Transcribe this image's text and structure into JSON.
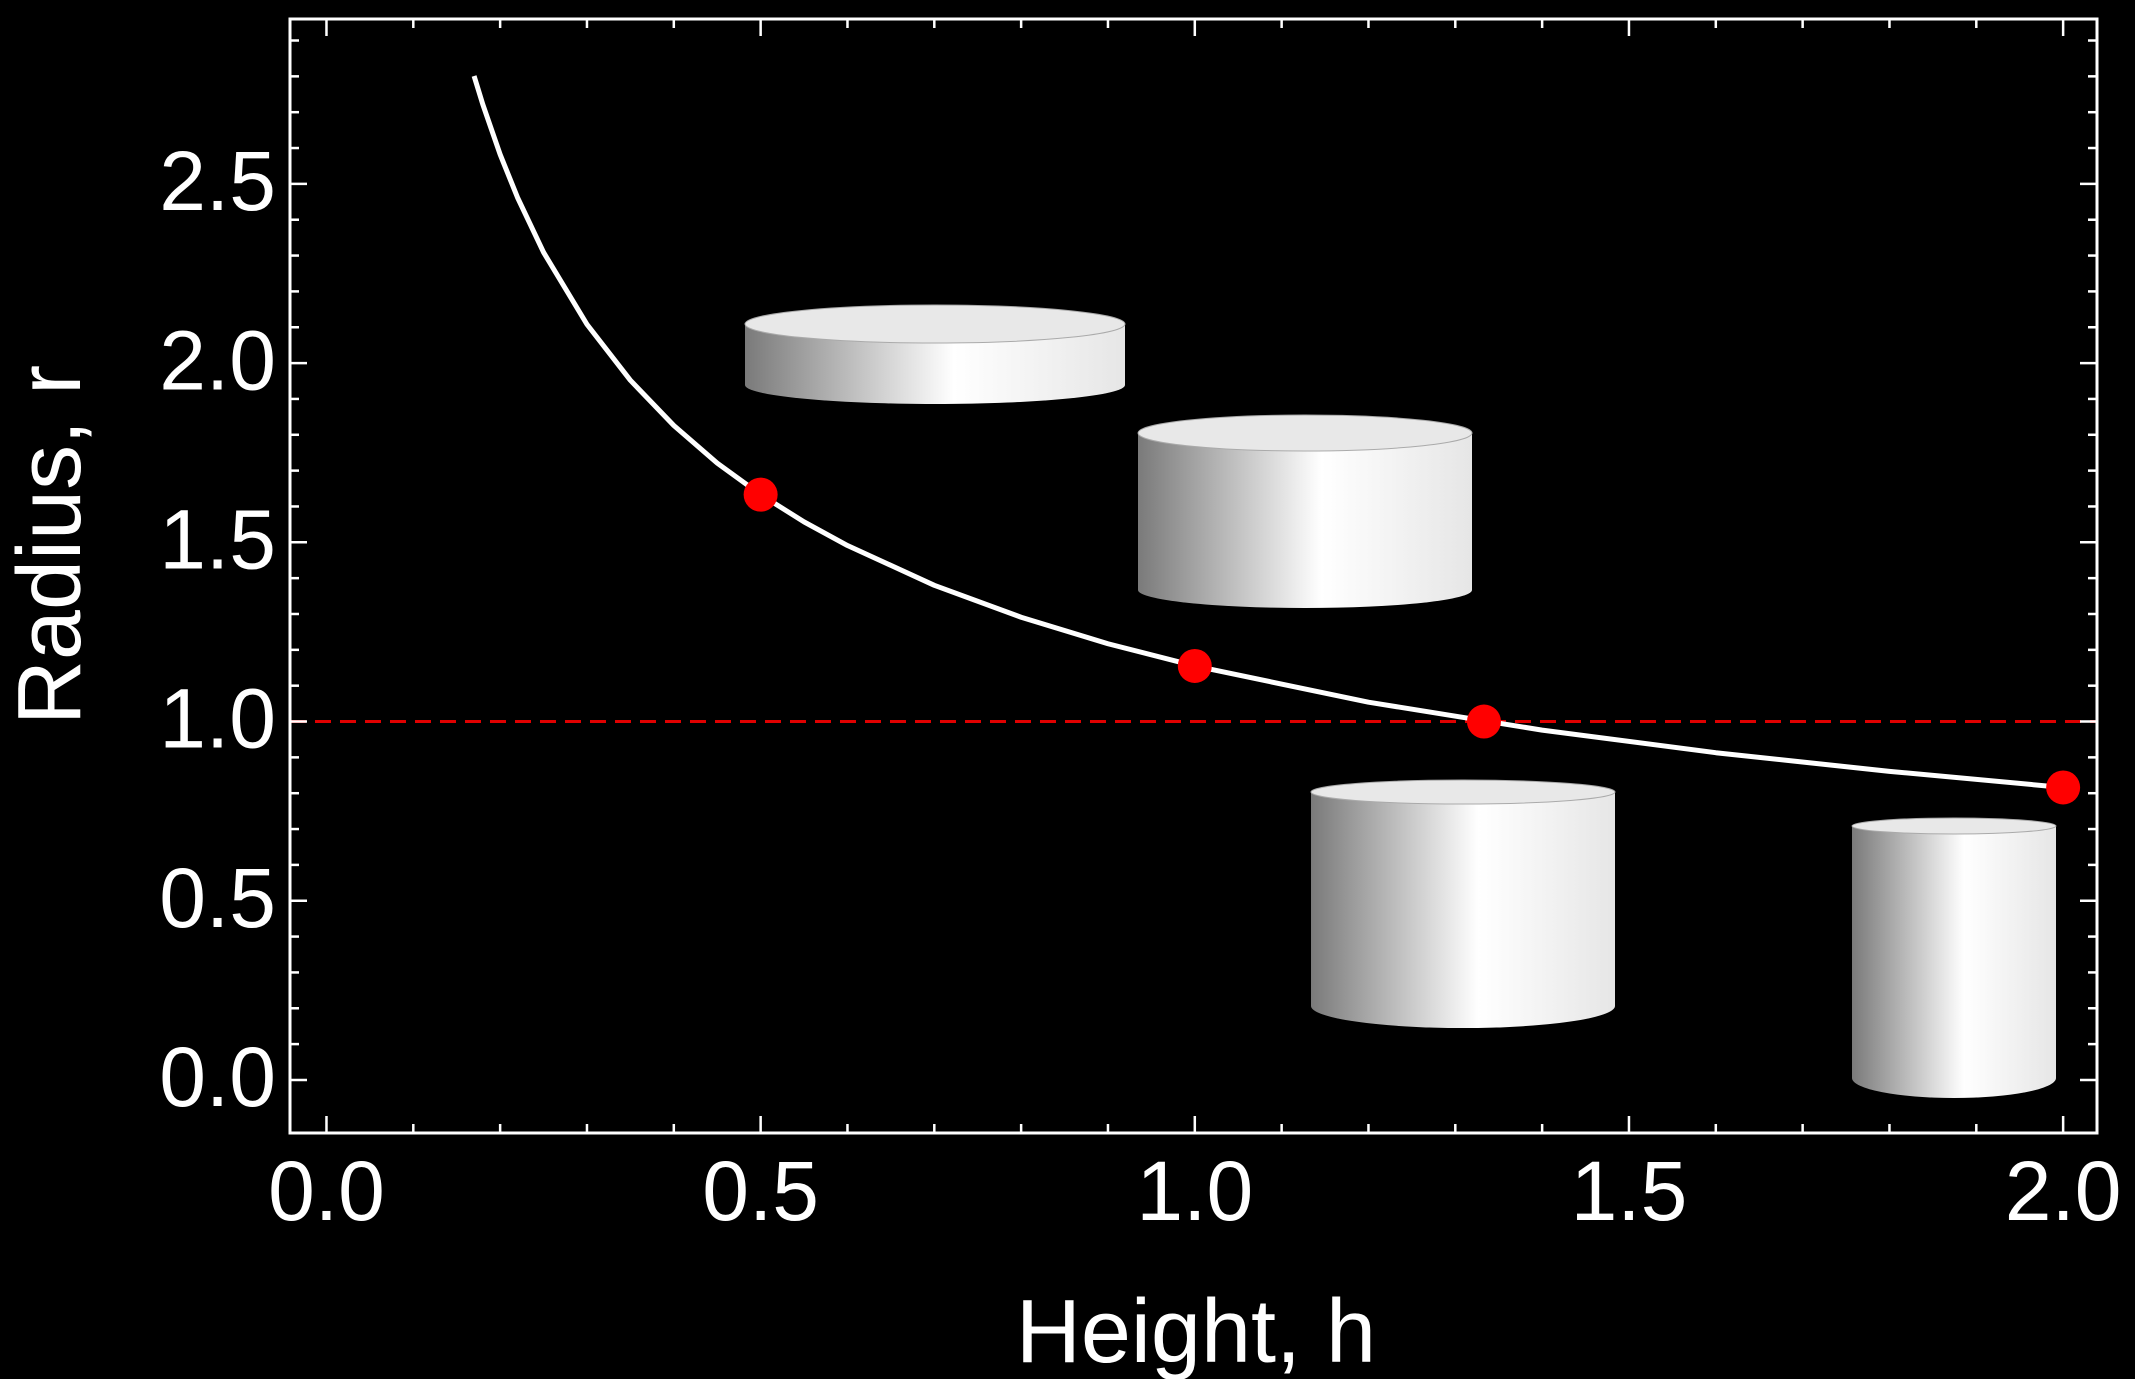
{
  "chart_data": {
    "type": "line",
    "x_label": "Height, h",
    "y_label": "Radius, r",
    "xlim": [
      -0.042,
      2.039
    ],
    "ylim": [
      -0.148,
      2.96
    ],
    "xticks": [
      {
        "value": 0,
        "label": "0.0"
      },
      0.5,
      {
        "value": 1,
        "label": "1.0"
      },
      1.5,
      {
        "value": 2,
        "label": "2.0"
      }
    ],
    "yticks": [
      {
        "value": 0,
        "label": "0.0"
      },
      0.5,
      {
        "value": 1,
        "label": "1.0"
      },
      1.5,
      {
        "value": 2,
        "label": "2.0"
      },
      2.5
    ],
    "minor_xticks": [
      0.1,
      0.2,
      0.3,
      0.4,
      0.6,
      0.7,
      0.8,
      0.9,
      1.1,
      1.2,
      1.3,
      1.4,
      1.6,
      1.7,
      1.8,
      1.9
    ],
    "minor_yticks": [
      0.1,
      0.2,
      0.3,
      0.4,
      0.6,
      0.7,
      0.8,
      0.9,
      1.1,
      1.2,
      1.3,
      1.4,
      1.6,
      1.7,
      1.8,
      1.9,
      2.1,
      2.2,
      2.3,
      2.4,
      2.6,
      2.7,
      2.8,
      2.9
    ],
    "axis_color": "#ffffff",
    "hline": {
      "value": 1,
      "color": "#e00000",
      "dashed": true
    },
    "series": [
      {
        "style": "line",
        "color": "#ffffff",
        "x": [
          0.17,
          0.18,
          0.2,
          0.22,
          0.25,
          0.3,
          0.35,
          0.4,
          0.45,
          0.5,
          0.55,
          0.6,
          0.7,
          0.8,
          0.9,
          1.0,
          1.2,
          1.4,
          1.6,
          1.8,
          2.0
        ],
        "values": [
          2.801,
          2.722,
          2.582,
          2.462,
          2.309,
          2.108,
          1.952,
          1.826,
          1.721,
          1.633,
          1.557,
          1.491,
          1.38,
          1.291,
          1.217,
          1.155,
          1.054,
          0.976,
          0.913,
          0.861,
          0.816
        ]
      },
      {
        "style": "markers",
        "color": "#ff0000",
        "x": [
          0.5,
          1.0,
          1.333,
          2.0
        ],
        "values": [
          1.633,
          1.155,
          1.0,
          0.816
        ]
      }
    ]
  }
}
